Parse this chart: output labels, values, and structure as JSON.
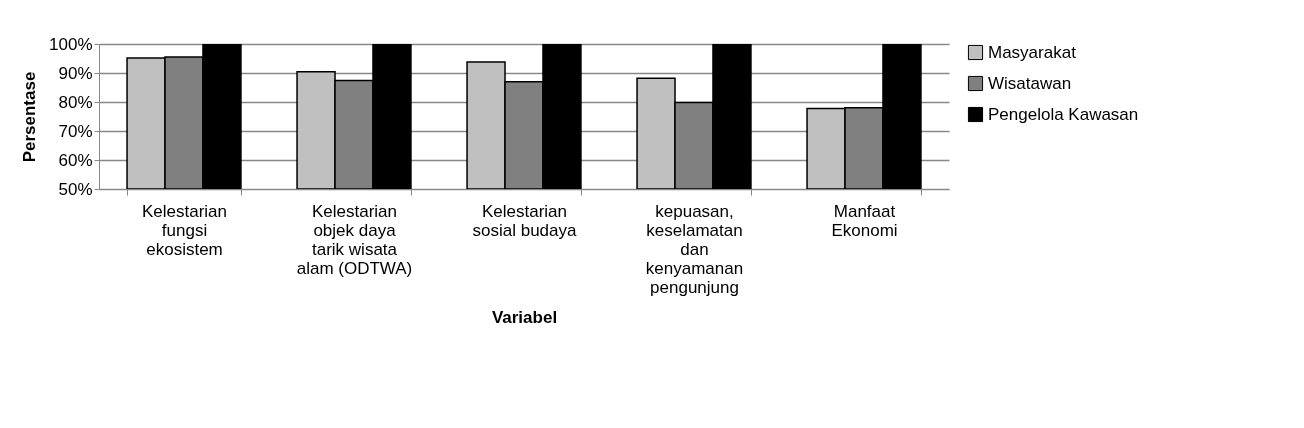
{
  "chart_data": {
    "type": "bar",
    "xlabel": "Variabel",
    "ylabel": "Persentase",
    "categories": [
      "Kelestarian fungsi ekosistem",
      "Kelestarian objek daya tarik wisata alam (ODTWA)",
      "Kelestarian sosial budaya",
      "kepuasan, keselamatan dan kenyamanan pengunjung",
      "Manfaat Ekonomi"
    ],
    "series": [
      {
        "name": "Masyarakat",
        "color": "#c0c0c0",
        "values": [
          95.2,
          90.4,
          93.8,
          88.2,
          77.8
        ]
      },
      {
        "name": "Wisatawan",
        "color": "#808080",
        "values": [
          95.5,
          87.4,
          87.0,
          79.8,
          78.0
        ]
      },
      {
        "name": "Pengelola Kawasan",
        "color": "#000000",
        "values": [
          100,
          100,
          100,
          100,
          100
        ]
      }
    ],
    "ylim": [
      50,
      100
    ],
    "yticks": [
      {
        "value": 50,
        "label": "50%"
      },
      {
        "value": 60,
        "label": "60%"
      },
      {
        "value": 70,
        "label": "70%"
      },
      {
        "value": 80,
        "label": "80%"
      },
      {
        "value": 90,
        "label": "90%"
      },
      {
        "value": 100,
        "label": "100%"
      }
    ],
    "grid": "y",
    "legend": "right"
  }
}
